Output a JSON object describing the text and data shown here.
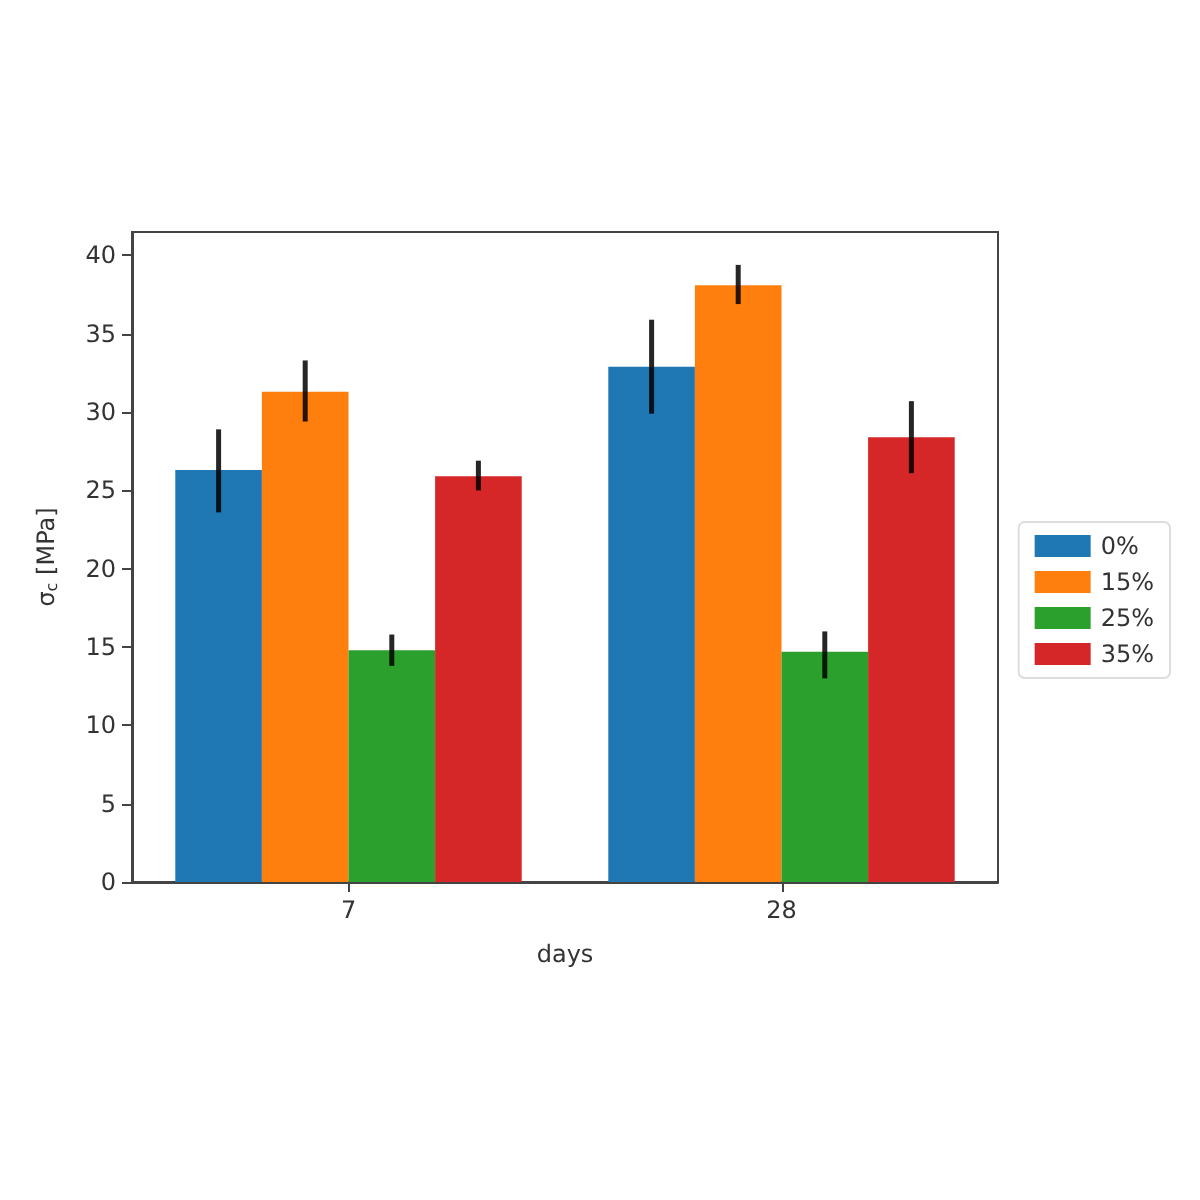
{
  "chart_data": {
    "type": "bar",
    "xlabel": "days",
    "ylabel": "σ$_{c}$ [MPa]",
    "categories": [
      "7",
      "28"
    ],
    "series": [
      {
        "name": "0%",
        "color": "#1f77b4",
        "values": [
          26.3,
          32.9
        ],
        "errors": [
          [
            23.6,
            28.9
          ],
          [
            29.9,
            35.9
          ]
        ]
      },
      {
        "name": "15%",
        "color": "#ff7f0e",
        "values": [
          31.3,
          38.1
        ],
        "errors": [
          [
            29.4,
            33.3
          ],
          [
            36.9,
            39.4
          ]
        ]
      },
      {
        "name": "25%",
        "color": "#2ca02c",
        "values": [
          14.8,
          14.7
        ],
        "errors": [
          [
            13.8,
            15.8
          ],
          [
            13.0,
            16.0
          ]
        ]
      },
      {
        "name": "35%",
        "color": "#d62728",
        "values": [
          25.9,
          28.4
        ],
        "errors": [
          [
            25.0,
            26.9
          ],
          [
            26.1,
            30.7
          ]
        ]
      }
    ],
    "ylim": [
      0,
      41.5
    ],
    "yticks": [
      0,
      5,
      10,
      15,
      20,
      25,
      30,
      35,
      40
    ],
    "grid": false,
    "legend": "right"
  }
}
